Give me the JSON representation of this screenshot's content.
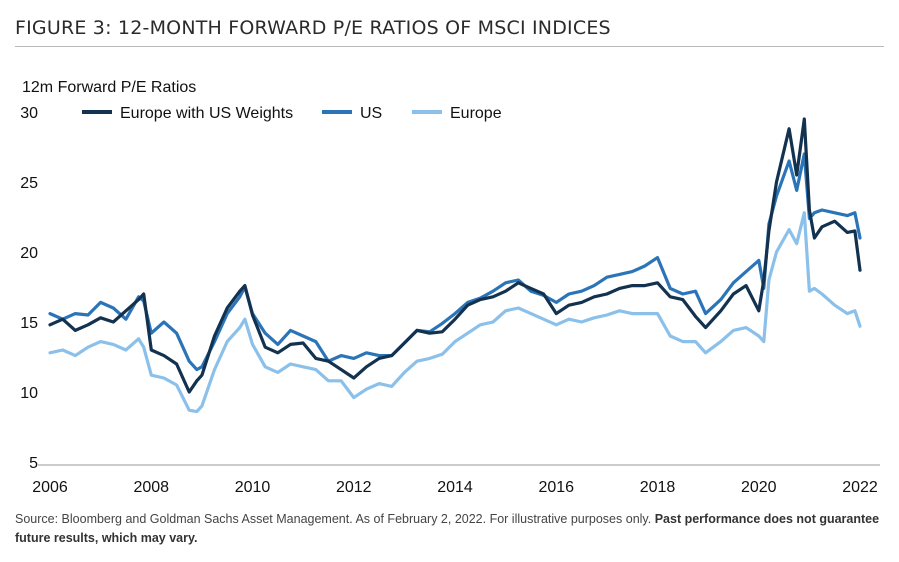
{
  "figure": {
    "title": "FIGURE 3: 12-MONTH FORWARD P/E RATIOS OF MSCI INDICES",
    "source_text": "Source: Bloomberg and Goldman Sachs Asset Management. As of February 2, 2022. For illustrative purposes only.",
    "source_bold": "Past performance does not guarantee future results, which may vary."
  },
  "chart_data": {
    "type": "line",
    "ylabel": "12m Forward P/E Ratios",
    "xlabel": "",
    "xlim": [
      2006,
      2022
    ],
    "ylim": [
      5,
      30
    ],
    "x_ticks": [
      2006,
      2008,
      2010,
      2012,
      2014,
      2016,
      2018,
      2020,
      2022
    ],
    "y_ticks": [
      5,
      10,
      15,
      20,
      25,
      30
    ],
    "grid": false,
    "legend_position": "top-left",
    "x": [
      2006.0,
      2006.25,
      2006.5,
      2006.75,
      2007.0,
      2007.25,
      2007.5,
      2007.75,
      2007.85,
      2008.0,
      2008.25,
      2008.5,
      2008.75,
      2008.9,
      2009.0,
      2009.25,
      2009.5,
      2009.75,
      2009.85,
      2010.0,
      2010.25,
      2010.5,
      2010.75,
      2011.0,
      2011.25,
      2011.5,
      2011.75,
      2012.0,
      2012.25,
      2012.5,
      2012.75,
      2013.0,
      2013.25,
      2013.5,
      2013.75,
      2014.0,
      2014.25,
      2014.5,
      2014.75,
      2015.0,
      2015.25,
      2015.5,
      2015.75,
      2016.0,
      2016.25,
      2016.5,
      2016.75,
      2017.0,
      2017.25,
      2017.5,
      2017.75,
      2018.0,
      2018.25,
      2018.5,
      2018.75,
      2018.95,
      2019.25,
      2019.5,
      2019.75,
      2020.0,
      2020.1,
      2020.2,
      2020.35,
      2020.6,
      2020.75,
      2020.9,
      2021.0,
      2021.1,
      2021.25,
      2021.5,
      2021.75,
      2021.9,
      2022.0
    ],
    "series": [
      {
        "name": "Europe with US Weights",
        "color": "#13324f",
        "values": [
          14.8,
          15.2,
          14.4,
          14.8,
          15.3,
          15.0,
          15.8,
          16.6,
          17.0,
          13.0,
          12.6,
          12.0,
          10.0,
          10.8,
          11.2,
          14.0,
          16.0,
          17.2,
          17.6,
          15.5,
          13.2,
          12.8,
          13.4,
          13.5,
          12.4,
          12.2,
          11.6,
          11.0,
          11.8,
          12.4,
          12.6,
          13.5,
          14.4,
          14.2,
          14.3,
          15.2,
          16.2,
          16.6,
          16.8,
          17.2,
          17.8,
          17.4,
          17.0,
          15.6,
          16.2,
          16.4,
          16.8,
          17.0,
          17.4,
          17.6,
          17.6,
          17.8,
          16.8,
          16.6,
          15.4,
          14.6,
          15.8,
          17.0,
          17.6,
          15.8,
          18.0,
          21.5,
          25.0,
          28.8,
          25.5,
          29.5,
          23.0,
          21.0,
          21.8,
          22.2,
          21.4,
          21.5,
          18.7
        ]
      },
      {
        "name": "US",
        "color": "#2b74b8",
        "values": [
          15.6,
          15.2,
          15.6,
          15.5,
          16.4,
          16.0,
          15.2,
          16.8,
          16.5,
          14.2,
          15.0,
          14.2,
          12.2,
          11.6,
          11.8,
          13.6,
          15.6,
          16.8,
          17.5,
          15.6,
          14.2,
          13.4,
          14.4,
          14.0,
          13.6,
          12.2,
          12.6,
          12.4,
          12.8,
          12.6,
          12.6,
          13.5,
          14.4,
          14.3,
          14.9,
          15.6,
          16.4,
          16.7,
          17.2,
          17.8,
          18.0,
          17.2,
          16.9,
          16.4,
          17.0,
          17.2,
          17.6,
          18.2,
          18.4,
          18.6,
          19.0,
          19.6,
          17.4,
          17.0,
          17.2,
          15.6,
          16.6,
          17.8,
          18.6,
          19.4,
          17.4,
          22.0,
          24.0,
          26.5,
          24.4,
          27.0,
          22.4,
          22.8,
          23.0,
          22.8,
          22.6,
          22.8,
          21.0
        ]
      },
      {
        "name": "Europe",
        "color": "#8ac0ea",
        "values": [
          12.8,
          13.0,
          12.6,
          13.2,
          13.6,
          13.4,
          13.0,
          13.8,
          13.2,
          11.2,
          11.0,
          10.5,
          8.7,
          8.6,
          9.0,
          11.6,
          13.6,
          14.6,
          15.2,
          13.4,
          11.8,
          11.4,
          12.0,
          11.8,
          11.6,
          10.8,
          10.8,
          9.6,
          10.2,
          10.6,
          10.4,
          11.4,
          12.2,
          12.4,
          12.7,
          13.6,
          14.2,
          14.8,
          15.0,
          15.8,
          16.0,
          15.6,
          15.2,
          14.8,
          15.2,
          15.0,
          15.3,
          15.5,
          15.8,
          15.6,
          15.6,
          15.6,
          14.0,
          13.6,
          13.6,
          12.8,
          13.6,
          14.4,
          14.6,
          14.0,
          13.6,
          18.0,
          20.0,
          21.6,
          20.6,
          22.8,
          17.2,
          17.4,
          17.0,
          16.2,
          15.6,
          15.8,
          14.7
        ]
      }
    ]
  }
}
